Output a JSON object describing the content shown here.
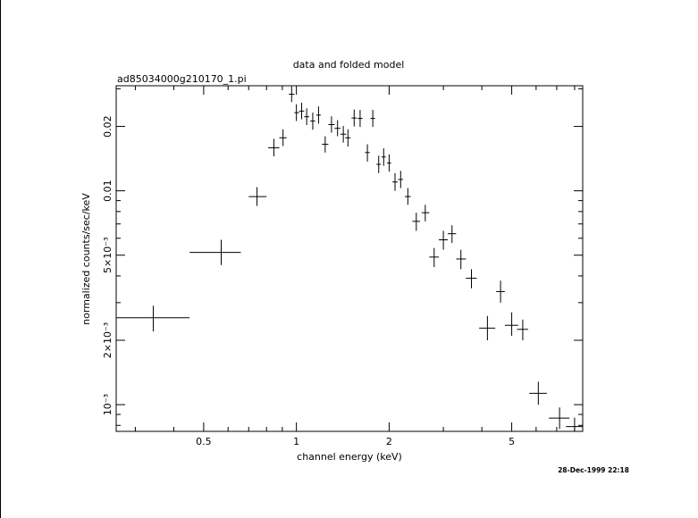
{
  "chart_data": {
    "type": "scatter",
    "title": "data and folded model",
    "subtitle": "ad85034000g210170_1.pi",
    "xlabel": "channel energy (keV)",
    "ylabel": "normalized counts/sec/keV",
    "timestamp": "28-Dec-1999 22:18",
    "x_scale": "log",
    "y_scale": "log",
    "xlim": [
      0.26,
      8.5
    ],
    "ylim": [
      0.00075,
      0.031
    ],
    "x_ticks": [
      {
        "value": 0.5,
        "label": "0.5"
      },
      {
        "value": 1,
        "label": "1"
      },
      {
        "value": 2,
        "label": "2"
      },
      {
        "value": 5,
        "label": "5"
      }
    ],
    "y_ticks": [
      {
        "value": 0.001,
        "label": "10⁻³"
      },
      {
        "value": 0.002,
        "label": "2×10⁻³"
      },
      {
        "value": 0.005,
        "label": "5×10⁻³"
      },
      {
        "value": 0.01,
        "label": "0.01"
      },
      {
        "value": 0.02,
        "label": "0.02"
      }
    ],
    "grid": false,
    "series": [
      {
        "points": [
          {
            "x": 0.343,
            "xlo": 0.26,
            "xhi": 0.45,
            "y": 0.00255,
            "ylo": 0.0022,
            "yhi": 0.0029
          },
          {
            "x": 0.57,
            "xlo": 0.45,
            "xhi": 0.66,
            "y": 0.00515,
            "ylo": 0.0045,
            "yhi": 0.0059
          },
          {
            "x": 0.745,
            "xlo": 0.7,
            "xhi": 0.8,
            "y": 0.0094,
            "ylo": 0.0085,
            "yhi": 0.0104
          },
          {
            "x": 0.845,
            "xlo": 0.81,
            "xhi": 0.88,
            "y": 0.0159,
            "ylo": 0.0145,
            "yhi": 0.0175
          },
          {
            "x": 0.905,
            "xlo": 0.88,
            "xhi": 0.93,
            "y": 0.0177,
            "ylo": 0.0162,
            "yhi": 0.0194
          },
          {
            "x": 0.965,
            "xlo": 0.945,
            "xhi": 0.985,
            "y": 0.0283,
            "ylo": 0.026,
            "yhi": 0.0308
          },
          {
            "x": 1.0,
            "xlo": 0.985,
            "xhi": 1.02,
            "y": 0.0232,
            "ylo": 0.0212,
            "yhi": 0.0254
          },
          {
            "x": 1.04,
            "xlo": 1.02,
            "xhi": 1.06,
            "y": 0.0236,
            "ylo": 0.0216,
            "yhi": 0.0258
          },
          {
            "x": 1.08,
            "xlo": 1.06,
            "xhi": 1.1,
            "y": 0.0222,
            "ylo": 0.0203,
            "yhi": 0.0243
          },
          {
            "x": 1.13,
            "xlo": 1.11,
            "xhi": 1.15,
            "y": 0.0212,
            "ylo": 0.0193,
            "yhi": 0.0232
          },
          {
            "x": 1.18,
            "xlo": 1.16,
            "xhi": 1.2,
            "y": 0.0226,
            "ylo": 0.0206,
            "yhi": 0.0248
          },
          {
            "x": 1.24,
            "xlo": 1.21,
            "xhi": 1.27,
            "y": 0.0165,
            "ylo": 0.0151,
            "yhi": 0.018
          },
          {
            "x": 1.3,
            "xlo": 1.27,
            "xhi": 1.33,
            "y": 0.0204,
            "ylo": 0.0187,
            "yhi": 0.0223
          },
          {
            "x": 1.36,
            "xlo": 1.33,
            "xhi": 1.39,
            "y": 0.0196,
            "ylo": 0.018,
            "yhi": 0.0214
          },
          {
            "x": 1.42,
            "xlo": 1.39,
            "xhi": 1.45,
            "y": 0.0184,
            "ylo": 0.0168,
            "yhi": 0.0201
          },
          {
            "x": 1.47,
            "xlo": 1.44,
            "xhi": 1.5,
            "y": 0.0177,
            "ylo": 0.0161,
            "yhi": 0.0194
          },
          {
            "x": 1.54,
            "xlo": 1.51,
            "xhi": 1.57,
            "y": 0.0219,
            "ylo": 0.02,
            "yhi": 0.024
          },
          {
            "x": 1.61,
            "xlo": 1.58,
            "xhi": 1.64,
            "y": 0.0218,
            "ylo": 0.0199,
            "yhi": 0.0239
          },
          {
            "x": 1.7,
            "xlo": 1.67,
            "xhi": 1.73,
            "y": 0.0151,
            "ylo": 0.0137,
            "yhi": 0.0165
          },
          {
            "x": 1.77,
            "xlo": 1.74,
            "xhi": 1.8,
            "y": 0.0218,
            "ylo": 0.0199,
            "yhi": 0.0239
          },
          {
            "x": 1.85,
            "xlo": 1.82,
            "xhi": 1.88,
            "y": 0.0133,
            "ylo": 0.0121,
            "yhi": 0.0146
          },
          {
            "x": 1.92,
            "xlo": 1.89,
            "xhi": 1.95,
            "y": 0.0144,
            "ylo": 0.0131,
            "yhi": 0.0158
          },
          {
            "x": 2.0,
            "xlo": 1.97,
            "xhi": 2.03,
            "y": 0.0135,
            "ylo": 0.0123,
            "yhi": 0.0148
          },
          {
            "x": 2.09,
            "xlo": 2.05,
            "xhi": 2.13,
            "y": 0.011,
            "ylo": 0.01,
            "yhi": 0.0121
          },
          {
            "x": 2.18,
            "xlo": 2.14,
            "xhi": 2.22,
            "y": 0.0113,
            "ylo": 0.0103,
            "yhi": 0.0124
          },
          {
            "x": 2.3,
            "xlo": 2.25,
            "xhi": 2.35,
            "y": 0.0094,
            "ylo": 0.0086,
            "yhi": 0.0103
          },
          {
            "x": 2.45,
            "xlo": 2.38,
            "xhi": 2.52,
            "y": 0.0072,
            "ylo": 0.0065,
            "yhi": 0.0079
          },
          {
            "x": 2.62,
            "xlo": 2.55,
            "xhi": 2.7,
            "y": 0.0079,
            "ylo": 0.0072,
            "yhi": 0.0086
          },
          {
            "x": 2.8,
            "xlo": 2.7,
            "xhi": 2.9,
            "y": 0.0049,
            "ylo": 0.0044,
            "yhi": 0.0054
          },
          {
            "x": 3.0,
            "xlo": 2.9,
            "xhi": 3.1,
            "y": 0.0059,
            "ylo": 0.0053,
            "yhi": 0.0065
          },
          {
            "x": 3.2,
            "xlo": 3.1,
            "xhi": 3.3,
            "y": 0.0063,
            "ylo": 0.0057,
            "yhi": 0.0069
          },
          {
            "x": 3.42,
            "xlo": 3.3,
            "xhi": 3.55,
            "y": 0.0048,
            "ylo": 0.0043,
            "yhi": 0.0053
          },
          {
            "x": 3.7,
            "xlo": 3.55,
            "xhi": 3.85,
            "y": 0.0039,
            "ylo": 0.0035,
            "yhi": 0.0043
          },
          {
            "x": 4.17,
            "xlo": 3.92,
            "xhi": 4.42,
            "y": 0.00228,
            "ylo": 0.002,
            "yhi": 0.0026
          },
          {
            "x": 4.6,
            "xlo": 4.45,
            "xhi": 4.75,
            "y": 0.00338,
            "ylo": 0.003,
            "yhi": 0.0038
          },
          {
            "x": 5.0,
            "xlo": 4.75,
            "xhi": 5.25,
            "y": 0.00235,
            "ylo": 0.0021,
            "yhi": 0.0027
          },
          {
            "x": 5.43,
            "xlo": 5.2,
            "xhi": 5.65,
            "y": 0.00225,
            "ylo": 0.002,
            "yhi": 0.0025
          },
          {
            "x": 6.1,
            "xlo": 5.7,
            "xhi": 6.5,
            "y": 0.00113,
            "ylo": 0.001,
            "yhi": 0.00128
          },
          {
            "x": 7.15,
            "xlo": 6.6,
            "xhi": 7.7,
            "y": 0.000865,
            "ylo": 0.00077,
            "yhi": 0.00097
          },
          {
            "x": 8.0,
            "xlo": 7.5,
            "xhi": 8.5,
            "y": 0.00079,
            "ylo": 0.00072,
            "yhi": 0.00087
          }
        ]
      }
    ]
  }
}
